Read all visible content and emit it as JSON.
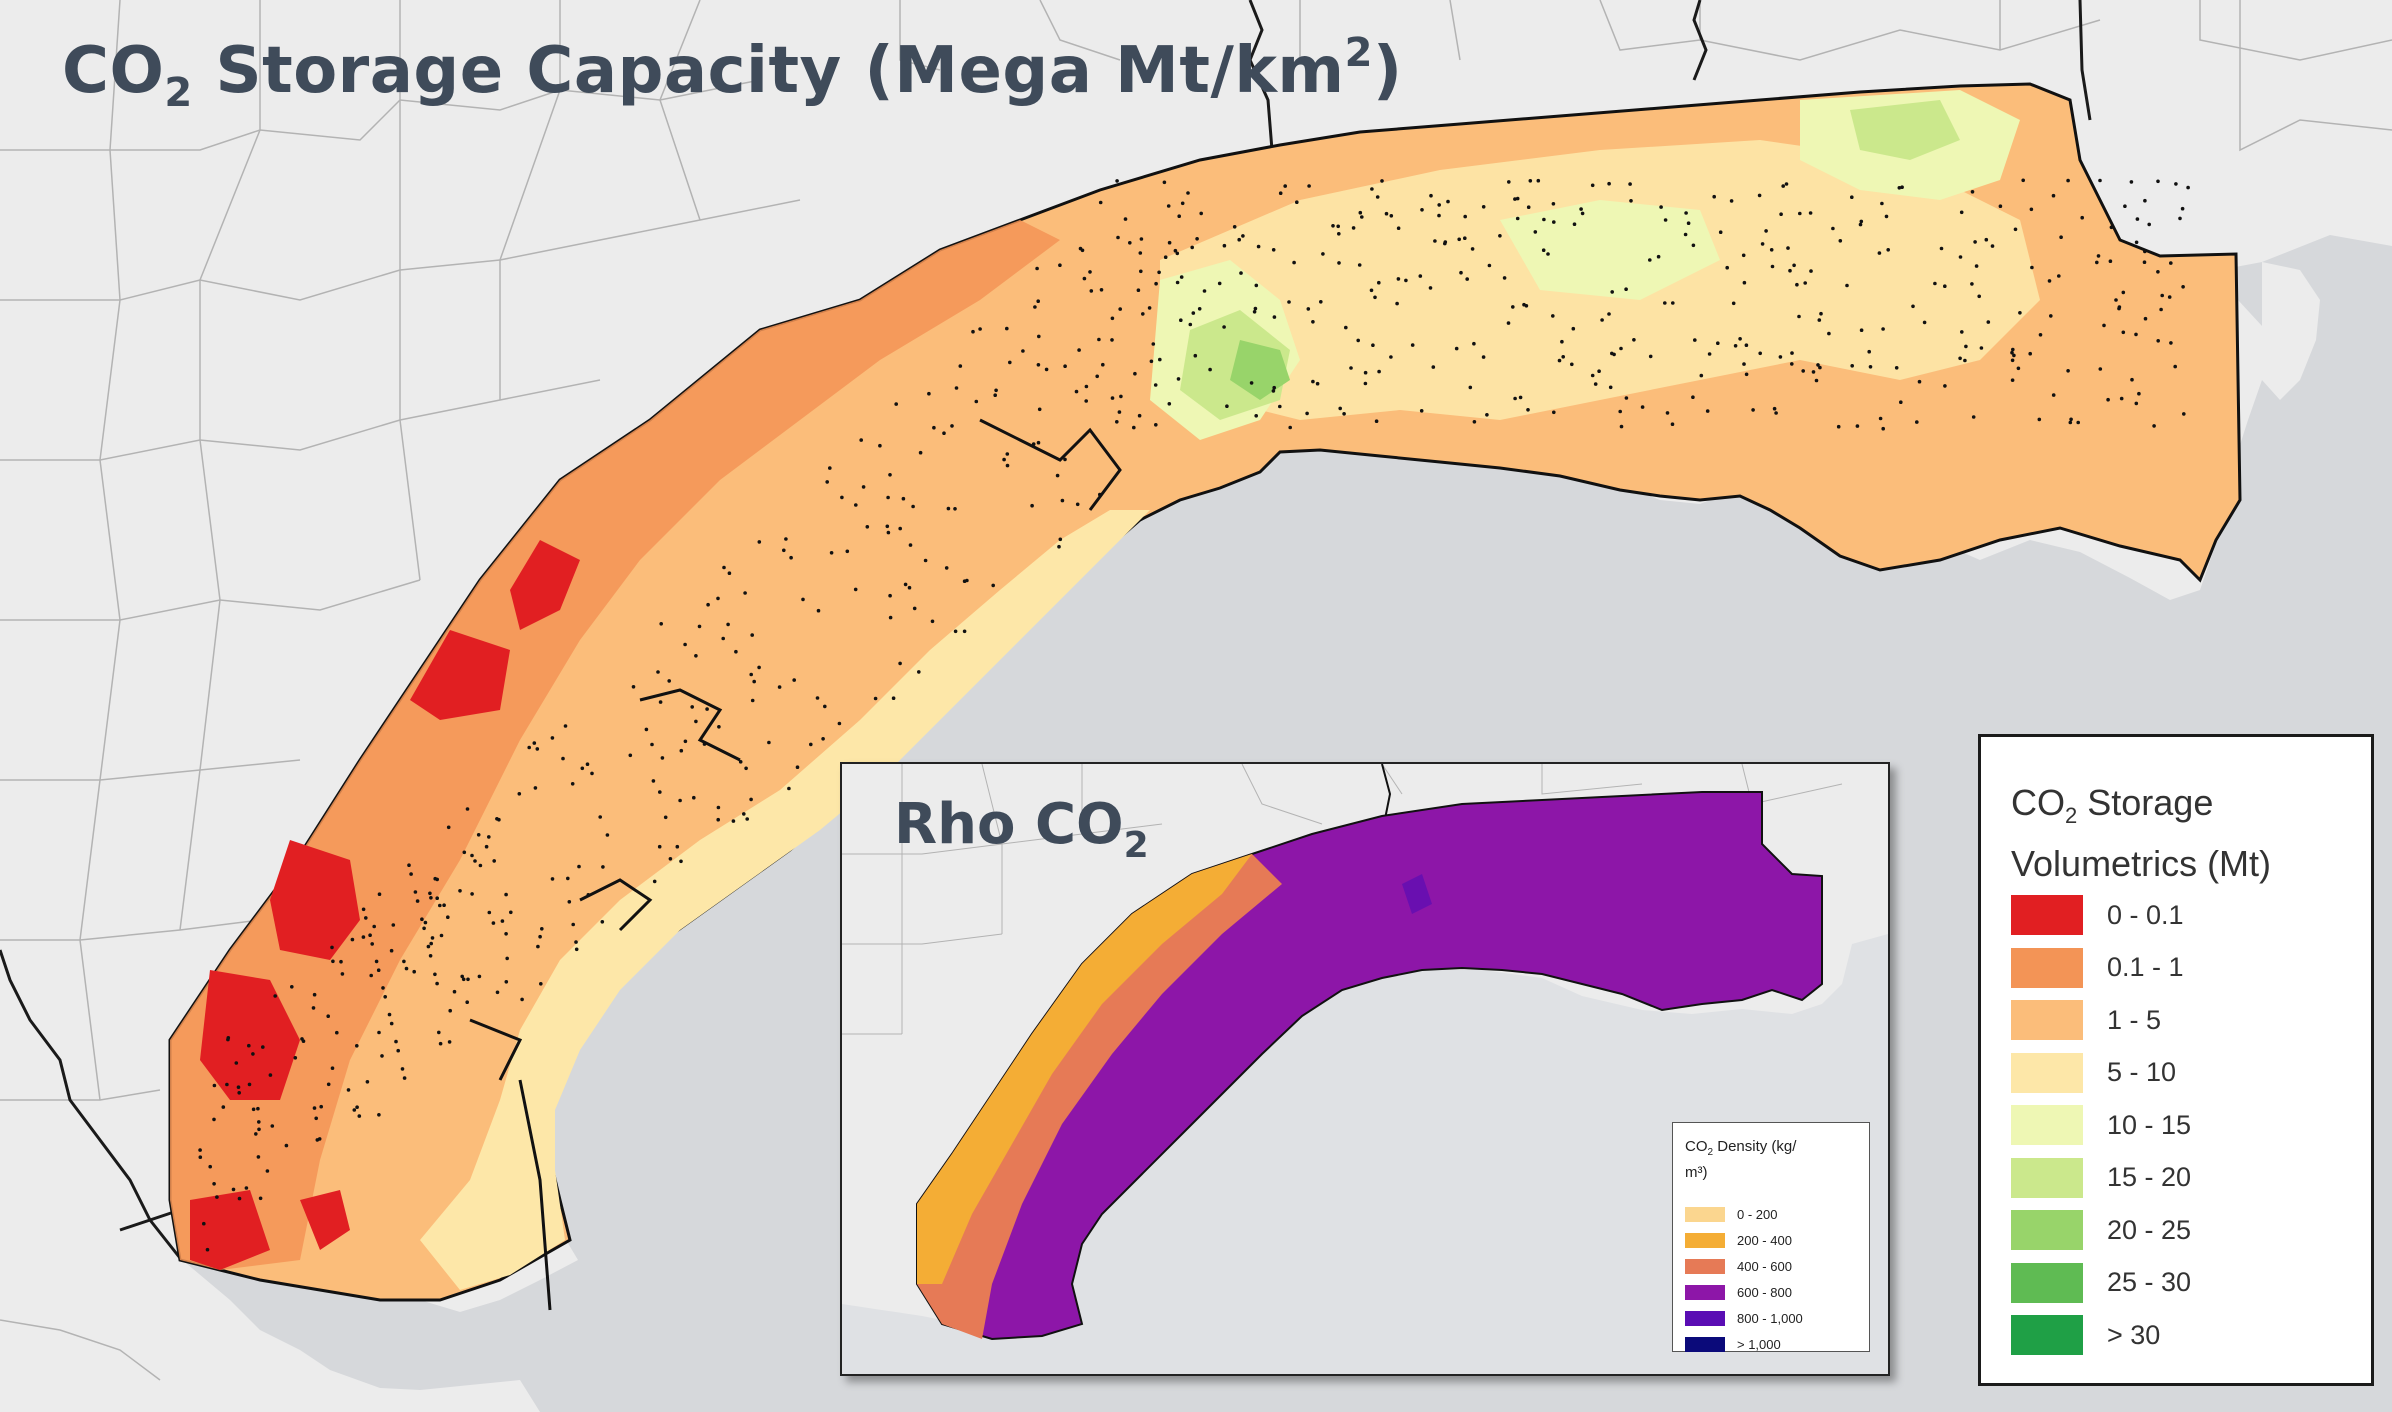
{
  "main_map": {
    "title_main": "CO",
    "title_sub": "2",
    "title_mid": " Storage Capacity (Mega Mt/km",
    "title_sup": "2",
    "title_end": ")"
  },
  "inset_map": {
    "title_main": "Rho CO",
    "title_sub": "2",
    "legend": {
      "title_a": "CO",
      "title_sub": "2",
      "title_b": " Density (kg/",
      "title_c": "m³)",
      "classes": [
        {
          "label": "0 - 200",
          "color": "#fbd68f"
        },
        {
          "label": "200 - 400",
          "color": "#f4ad35"
        },
        {
          "label": "400 - 600",
          "color": "#e67a56"
        },
        {
          "label": "600 - 800",
          "color": "#8d16a8"
        },
        {
          "label": "800 - 1,000",
          "color": "#5a0db4"
        },
        {
          "label": "> 1,000",
          "color": "#0b0a7a"
        }
      ]
    }
  },
  "legend": {
    "title_a": "CO",
    "title_sub": "2",
    "title_b": " Storage",
    "title_c": "Volumetrics (Mt)",
    "classes": [
      {
        "label": "0 - 0.1",
        "color": "#e11f22"
      },
      {
        "label": "0.1 - 1",
        "color": "#f39456"
      },
      {
        "label": "1 - 5",
        "color": "#fbbd7a"
      },
      {
        "label": "5 - 10",
        "color": "#fde7a8"
      },
      {
        "label": "10 - 15",
        "color": "#eef7b4"
      },
      {
        "label": "15 - 20",
        "color": "#cbe88c"
      },
      {
        "label": "20 - 25",
        "color": "#98d46a"
      },
      {
        "label": "25 - 30",
        "color": "#5fbb53"
      },
      {
        "label": "> 30",
        "color": "#1fa046"
      }
    ]
  },
  "colors": {
    "land": "#ececec",
    "water": "#d6d8db",
    "county_lines": "#b3b3b3",
    "state_lines": "#1a1a1a"
  }
}
